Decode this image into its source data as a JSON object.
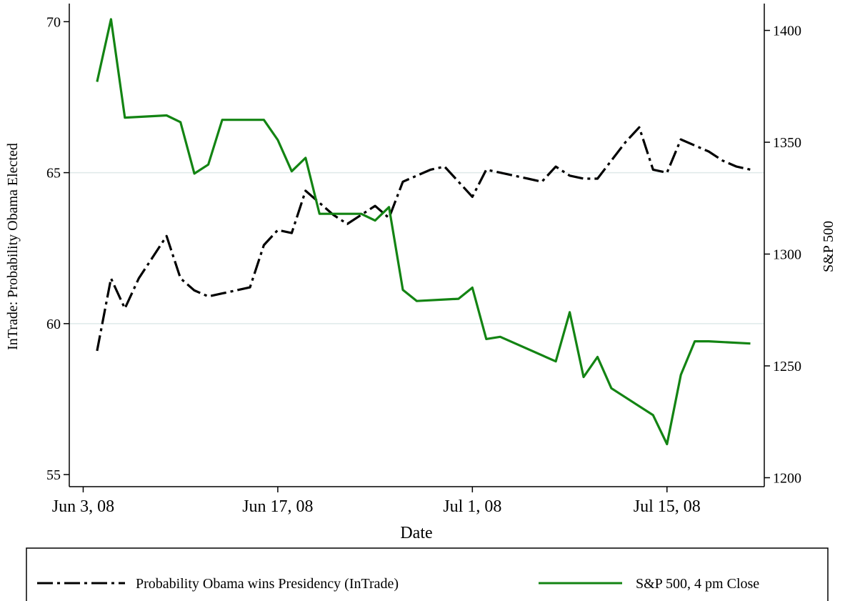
{
  "chart_data": {
    "type": "line",
    "xlabel": "Date",
    "ylabel_left": "InTrade: Probability Obama Elected",
    "ylabel_right": "S&P 500",
    "xlim": [
      "2008-06-02",
      "2008-07-22"
    ],
    "ylim_left": [
      54.6,
      70.6
    ],
    "ylim_right": [
      1196,
      1412
    ],
    "x_ticks": [
      {
        "date": "2008-06-03",
        "label": "Jun 3, 08"
      },
      {
        "date": "2008-06-17",
        "label": "Jun 17, 08"
      },
      {
        "date": "2008-07-01",
        "label": "Jul 1, 08"
      },
      {
        "date": "2008-07-15",
        "label": "Jul 15, 08"
      }
    ],
    "y_ticks_left": [
      55,
      60,
      65,
      70
    ],
    "y_ticks_right": [
      1200,
      1250,
      1300,
      1350,
      1400
    ],
    "gridlines_left": [
      60,
      65
    ],
    "grid_color": "#dfe9e9",
    "legend_position": "bottom",
    "series": [
      {
        "name": "Probability Obama wins Presidency (InTrade)",
        "axis": "left",
        "color": "#000000",
        "dash": "long-dash-dot",
        "x": [
          "2008-06-04",
          "2008-06-05",
          "2008-06-06",
          "2008-06-07",
          "2008-06-08",
          "2008-06-09",
          "2008-06-10",
          "2008-06-11",
          "2008-06-12",
          "2008-06-13",
          "2008-06-14",
          "2008-06-15",
          "2008-06-16",
          "2008-06-17",
          "2008-06-18",
          "2008-06-19",
          "2008-06-20",
          "2008-06-21",
          "2008-06-22",
          "2008-06-23",
          "2008-06-24",
          "2008-06-25",
          "2008-06-26",
          "2008-06-27",
          "2008-06-28",
          "2008-06-29",
          "2008-06-30",
          "2008-07-01",
          "2008-07-02",
          "2008-07-03",
          "2008-07-04",
          "2008-07-05",
          "2008-07-06",
          "2008-07-07",
          "2008-07-08",
          "2008-07-09",
          "2008-07-10",
          "2008-07-11",
          "2008-07-12",
          "2008-07-13",
          "2008-07-14",
          "2008-07-15",
          "2008-07-16",
          "2008-07-17",
          "2008-07-18",
          "2008-07-19",
          "2008-07-20",
          "2008-07-21"
        ],
        "y": [
          59.1,
          61.5,
          60.5,
          61.5,
          62.2,
          62.9,
          61.5,
          61.1,
          60.9,
          61.0,
          61.1,
          61.2,
          62.6,
          63.1,
          63.0,
          64.4,
          64.0,
          63.6,
          63.3,
          63.6,
          63.9,
          63.5,
          64.7,
          64.9,
          65.1,
          65.2,
          64.7,
          64.2,
          65.1,
          65.0,
          64.9,
          64.8,
          64.7,
          65.2,
          64.9,
          64.8,
          64.8,
          65.4,
          66.0,
          66.5,
          65.1,
          65.0,
          66.1,
          65.9,
          65.7,
          65.4,
          65.2,
          65.1
        ]
      },
      {
        "name": "S&P 500, 4 pm Close",
        "axis": "right",
        "color": "#138413",
        "dash": "solid",
        "x": [
          "2008-06-04",
          "2008-06-05",
          "2008-06-06",
          "2008-06-09",
          "2008-06-10",
          "2008-06-11",
          "2008-06-12",
          "2008-06-13",
          "2008-06-16",
          "2008-06-17",
          "2008-06-18",
          "2008-06-19",
          "2008-06-20",
          "2008-06-23",
          "2008-06-24",
          "2008-06-25",
          "2008-06-26",
          "2008-06-27",
          "2008-06-30",
          "2008-07-01",
          "2008-07-02",
          "2008-07-03",
          "2008-07-07",
          "2008-07-08",
          "2008-07-09",
          "2008-07-10",
          "2008-07-11",
          "2008-07-14",
          "2008-07-15",
          "2008-07-16",
          "2008-07-17",
          "2008-07-18",
          "2008-07-21"
        ],
        "y": [
          1377,
          1405,
          1361,
          1362,
          1359,
          1336,
          1340,
          1360,
          1360,
          1351,
          1337,
          1343,
          1318,
          1318,
          1315,
          1321,
          1284,
          1279,
          1280,
          1285,
          1262,
          1263,
          1252,
          1274,
          1245,
          1254,
          1240,
          1228,
          1215,
          1246,
          1261,
          1261,
          1260
        ]
      }
    ]
  }
}
